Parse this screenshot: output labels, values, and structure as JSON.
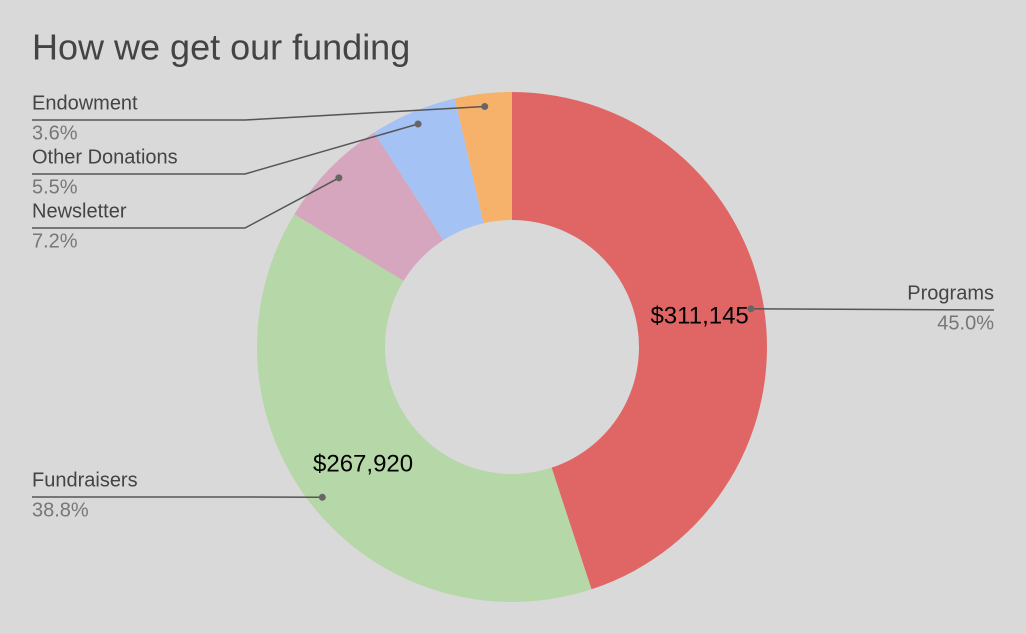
{
  "chart_data": {
    "type": "pie",
    "title": "How we get our funding",
    "categories": [
      "Programs",
      "Fundraisers",
      "Newsletter",
      "Other Donations",
      "Endowment"
    ],
    "values": [
      45.0,
      38.8,
      7.2,
      5.5,
      3.6
    ],
    "value_labels": [
      "45.0%",
      "38.8%",
      "7.2%",
      "5.5%",
      "3.6%"
    ],
    "amounts": [
      311145,
      267920,
      null,
      null,
      null
    ],
    "amount_labels": [
      "$311,145",
      "$267,920",
      null,
      null,
      null
    ],
    "colors": [
      "#e06666",
      "#b6d7a8",
      "#d5a6bd",
      "#a4c2f4",
      "#f6b26b"
    ],
    "donut": true
  }
}
